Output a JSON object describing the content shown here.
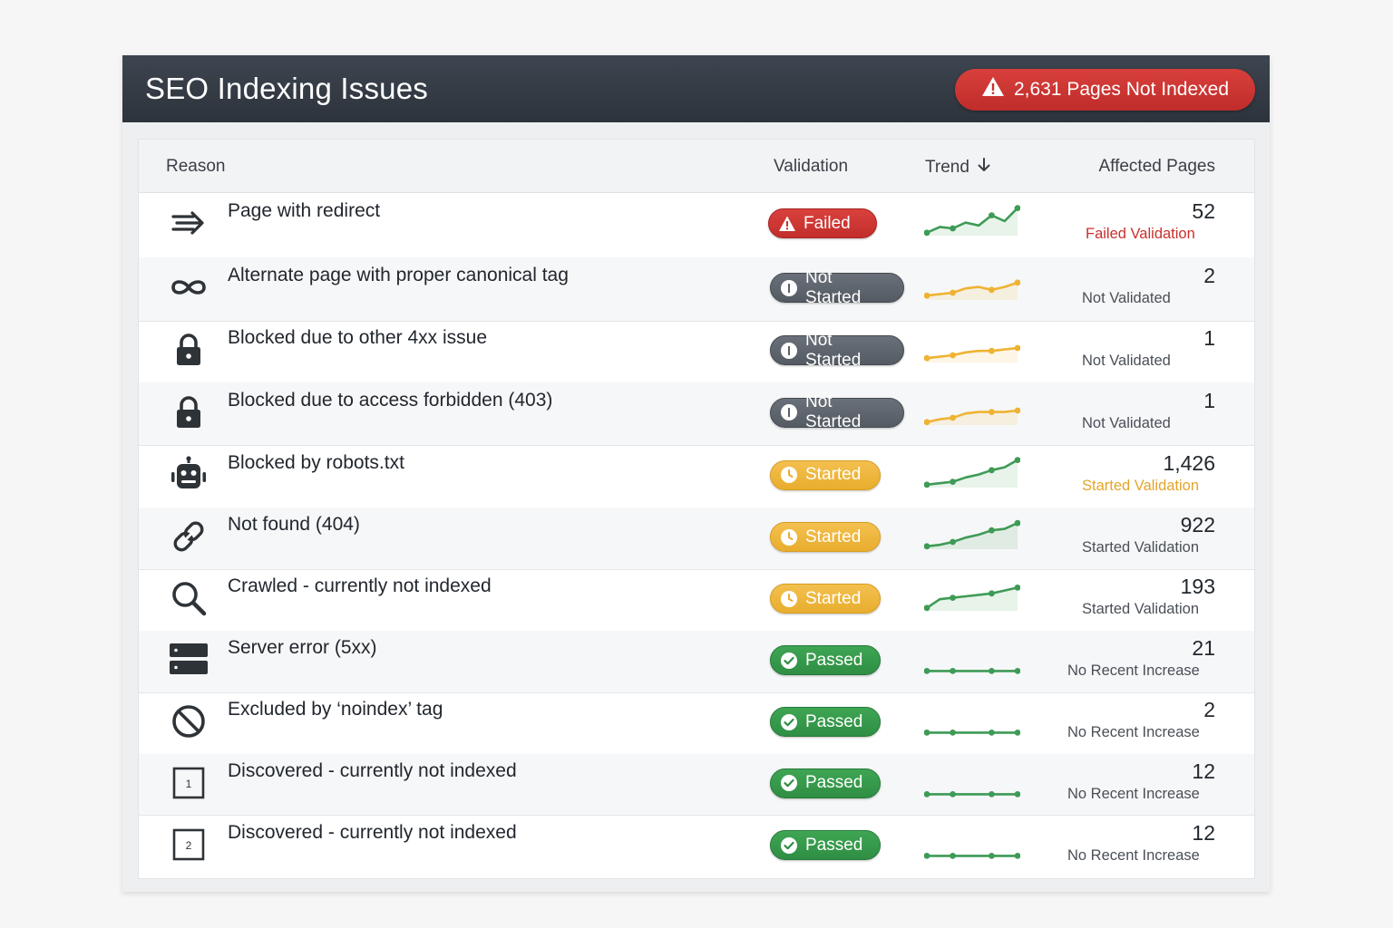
{
  "header": {
    "title": "SEO Indexing Issues",
    "alert_label": "2,631 Pages Not Indexed"
  },
  "table": {
    "columns": {
      "reason": "Reason",
      "validation": "Validation",
      "trend": "Trend",
      "affected": "Affected Pages"
    },
    "rows": [
      {
        "icon": "redirect-icon",
        "reason": "Page with redirect",
        "validation": "Failed",
        "validation_type": "failed",
        "count": "52",
        "status": "Failed Validation",
        "status_type": "red",
        "trend_color": "#3e9b56",
        "trend": [
          2,
          6,
          5,
          9,
          7,
          14,
          10,
          19
        ]
      },
      {
        "icon": "infinity-link-icon",
        "reason": "Alternate page with proper canonical tag",
        "validation": "Not Started",
        "validation_type": "notstarted",
        "count": "2",
        "status": "Not Validated",
        "status_type": "gray",
        "trend_color": "#efb332",
        "trend": [
          3,
          4,
          5,
          8,
          9,
          7,
          9,
          12
        ]
      },
      {
        "icon": "lock-icon",
        "reason": "Blocked due to other 4xx issue",
        "validation": "Not Started",
        "validation_type": "notstarted",
        "count": "1",
        "status": "Not Validated",
        "status_type": "gray",
        "trend_color": "#efb332",
        "trend": [
          3,
          4,
          5,
          7,
          8,
          8,
          9,
          10
        ]
      },
      {
        "icon": "lock-icon",
        "reason": "Blocked due to access forbidden (403)",
        "validation": "Not Started",
        "validation_type": "notstarted",
        "count": "1",
        "status": "Not Validated",
        "status_type": "gray",
        "trend_color": "#efb332",
        "trend": [
          2,
          4,
          5,
          8,
          9,
          9,
          9,
          10
        ]
      },
      {
        "icon": "robot-icon",
        "reason": "Blocked by robots.txt",
        "validation": "Started",
        "validation_type": "started",
        "count": "1,426",
        "status": "Started Validation",
        "status_type": "amber",
        "trend_color": "#3e9b56",
        "trend": [
          2,
          3,
          4,
          7,
          9,
          12,
          14,
          19
        ]
      },
      {
        "icon": "broken-link-icon",
        "reason": "Not found (404)",
        "validation": "Started",
        "validation_type": "started",
        "count": "922",
        "status": "Started Validation",
        "status_type": "gray",
        "trend_color": "#3e9b56",
        "trend": [
          2,
          3,
          5,
          8,
          10,
          13,
          14,
          18
        ]
      },
      {
        "icon": "magnifier-icon",
        "reason": "Crawled - currently not indexed",
        "validation": "Started",
        "validation_type": "started",
        "count": "193",
        "status": "Started Validation",
        "status_type": "gray",
        "trend_color": "#3e9b56",
        "trend": [
          2,
          8,
          9,
          10,
          11,
          12,
          14,
          16
        ]
      },
      {
        "icon": "server-icon",
        "reason": "Server error (5xx)",
        "validation": "Passed",
        "validation_type": "passed",
        "count": "21",
        "status": "No Recent Increase",
        "status_type": "gray",
        "trend_color": "#3e9b56",
        "trend": [
          1,
          1,
          1,
          1,
          1,
          1,
          1,
          1
        ]
      },
      {
        "icon": "prohibited-icon",
        "reason": "Excluded by ‘noindex’ tag",
        "validation": "Passed",
        "validation_type": "passed",
        "count": "2",
        "status": "No Recent Increase",
        "status_type": "gray",
        "trend_color": "#3e9b56",
        "trend": [
          1,
          1,
          1,
          1,
          1,
          1,
          1,
          1
        ]
      },
      {
        "icon": "numbered-box-1-icon",
        "icon_label": "1",
        "reason": "Discovered - currently not indexed",
        "validation": "Passed",
        "validation_type": "passed",
        "count": "12",
        "status": "No Recent Increase",
        "status_type": "gray",
        "trend_color": "#3e9b56",
        "trend": [
          1,
          1,
          1,
          1,
          1,
          1,
          1,
          1
        ]
      },
      {
        "icon": "numbered-box-2-icon",
        "icon_label": "2",
        "reason": "Discovered - currently not indexed",
        "validation": "Passed",
        "validation_type": "passed",
        "count": "12",
        "status": "No Recent Increase",
        "status_type": "gray",
        "trend_color": "#3e9b56",
        "trend": [
          1,
          1,
          1,
          1,
          1,
          1,
          1,
          1
        ]
      }
    ]
  }
}
